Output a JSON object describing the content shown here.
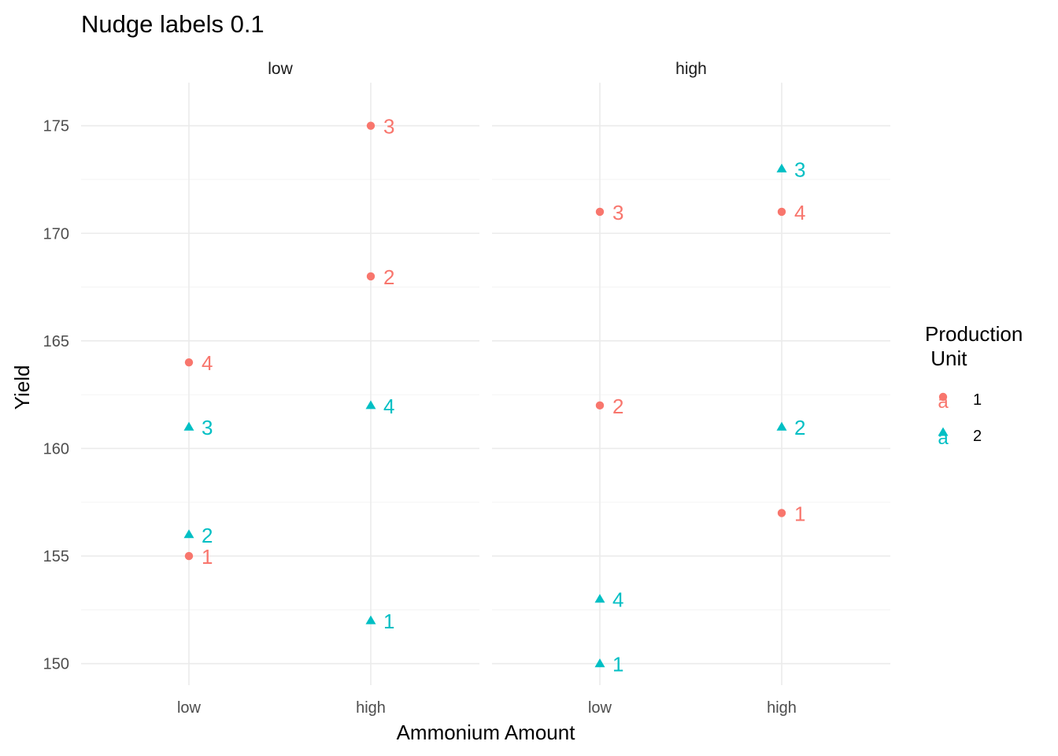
{
  "chart_data": {
    "type": "scatter",
    "title": "Nudge labels 0.1",
    "xlabel": "Ammonium Amount",
    "ylabel": "Yield",
    "facets": [
      "low",
      "high"
    ],
    "categories": [
      "low",
      "high"
    ],
    "ylim": [
      149,
      177
    ],
    "yticks": [
      150,
      155,
      160,
      165,
      170,
      175
    ],
    "grid": true,
    "legend": {
      "title_lines": [
        "Production",
        " Unit"
      ],
      "placement": "right",
      "key_glyph": "a"
    },
    "series": [
      {
        "name": "1",
        "color": "#F8766D",
        "shape": "circle",
        "points": [
          {
            "facet": "low",
            "x": "low",
            "y": 155,
            "label": "1"
          },
          {
            "facet": "low",
            "x": "low",
            "y": 164,
            "label": "4"
          },
          {
            "facet": "low",
            "x": "high",
            "y": 168,
            "label": "2"
          },
          {
            "facet": "low",
            "x": "high",
            "y": 175,
            "label": "3"
          },
          {
            "facet": "high",
            "x": "low",
            "y": 162,
            "label": "2"
          },
          {
            "facet": "high",
            "x": "low",
            "y": 171,
            "label": "3"
          },
          {
            "facet": "high",
            "x": "high",
            "y": 157,
            "label": "1"
          },
          {
            "facet": "high",
            "x": "high",
            "y": 171,
            "label": "4"
          }
        ]
      },
      {
        "name": "2",
        "color": "#00BFC4",
        "shape": "triangle",
        "points": [
          {
            "facet": "low",
            "x": "low",
            "y": 156,
            "label": "2"
          },
          {
            "facet": "low",
            "x": "low",
            "y": 161,
            "label": "3"
          },
          {
            "facet": "low",
            "x": "high",
            "y": 152,
            "label": "1"
          },
          {
            "facet": "low",
            "x": "high",
            "y": 162,
            "label": "4"
          },
          {
            "facet": "high",
            "x": "low",
            "y": 150,
            "label": "1"
          },
          {
            "facet": "high",
            "x": "low",
            "y": 153,
            "label": "4"
          },
          {
            "facet": "high",
            "x": "high",
            "y": 161,
            "label": "2"
          },
          {
            "facet": "high",
            "x": "high",
            "y": 173,
            "label": "3"
          }
        ]
      }
    ]
  }
}
